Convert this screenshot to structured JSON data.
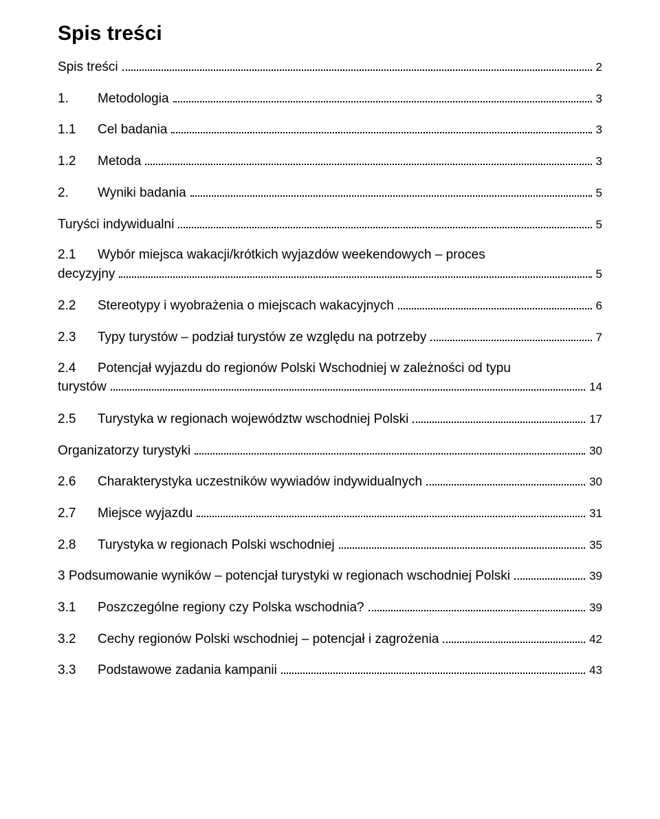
{
  "title": "Spis treści",
  "entries": {
    "e0": {
      "num": "",
      "label": "Spis treści",
      "page": "2"
    },
    "e1": {
      "num": "1.",
      "label": "Metodologia",
      "page": "3"
    },
    "e2": {
      "num": "1.1",
      "label": "Cel badania",
      "page": "3"
    },
    "e3": {
      "num": "1.2",
      "label": "Metoda",
      "page": "3"
    },
    "e4": {
      "num": "2.",
      "label": "Wyniki badania",
      "page": "5"
    },
    "e5": {
      "num": "",
      "label": "Turyści indywidualni",
      "page": "5"
    },
    "e6": {
      "num": "2.1",
      "label_line1": "Wybór miejsca wakacji/krótkich wyjazdów weekendowych – proces",
      "label_line2": "decyzyjny",
      "page": "5"
    },
    "e7": {
      "num": "2.2",
      "label": "Stereotypy i wyobrażenia o miejscach wakacyjnych",
      "page": "6"
    },
    "e8": {
      "num": "2.3",
      "label": "Typy turystów – podział turystów ze względu na potrzeby",
      "page": "7"
    },
    "e9": {
      "num": "2.4",
      "label_line1": "Potencjał wyjazdu do regionów Polski Wschodniej w zależności od typu",
      "label_line2": "turystów",
      "page": "14"
    },
    "e10": {
      "num": "2.5",
      "label": "Turystyka w regionach województw wschodniej Polski",
      "page": "17"
    },
    "e11": {
      "num": "",
      "label": "Organizatorzy turystyki",
      "page": "30"
    },
    "e12": {
      "num": "2.6",
      "label": "Charakterystyka uczestników wywiadów indywidualnych",
      "page": "30"
    },
    "e13": {
      "num": "2.7",
      "label": "Miejsce wyjazdu",
      "page": "31"
    },
    "e14": {
      "num": "2.8",
      "label": "Turystyka w regionach Polski wschodniej",
      "page": "35"
    },
    "e15": {
      "num": "",
      "label": "3 Podsumowanie wyników – potencjał turystyki w regionach wschodniej Polski",
      "page": "39"
    },
    "e16": {
      "num": "3.1",
      "label": "Poszczególne regiony czy Polska wschodnia?",
      "page": "39"
    },
    "e17": {
      "num": "3.2",
      "label": "Cechy regionów Polski wschodniej – potencjał i zagrożenia",
      "page": "42"
    },
    "e18": {
      "num": "3.3",
      "label": "Podstawowe zadania kampanii",
      "page": "43"
    }
  }
}
